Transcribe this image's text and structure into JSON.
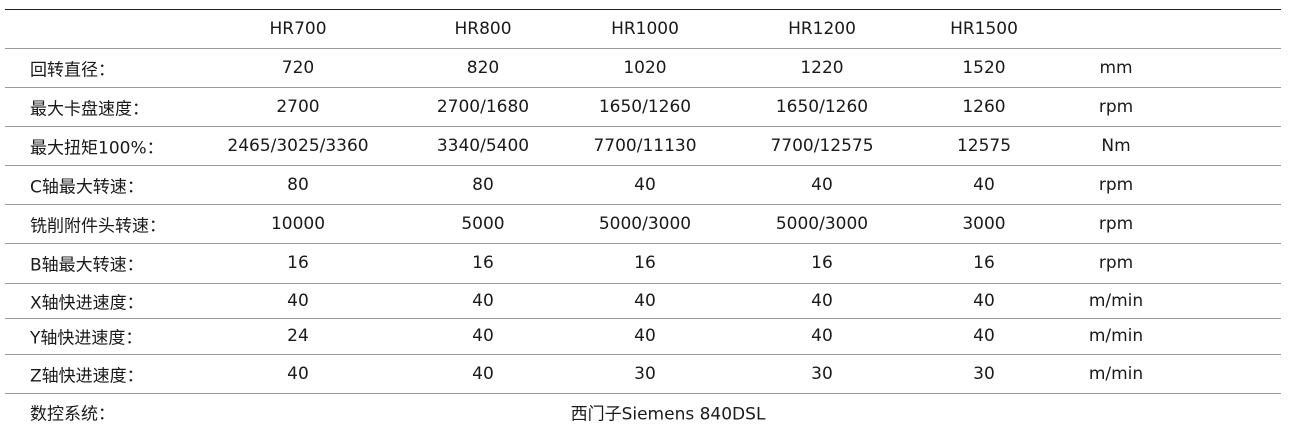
{
  "header": {
    "models": [
      "HR700",
      "HR800",
      "HR1000",
      "HR1200",
      "HR1500"
    ]
  },
  "rows": [
    {
      "label": "回转直径：",
      "values": [
        "720",
        "820",
        "1020",
        "1220",
        "1520"
      ],
      "unit": "mm"
    },
    {
      "label": "最大卡盘速度：",
      "values": [
        "2700",
        "2700/1680",
        "1650/1260",
        "1650/1260",
        "1260"
      ],
      "unit": "rpm"
    },
    {
      "label": "最大扭矩100%：",
      "values": [
        "2465/3025/3360",
        "3340/5400",
        "7700/11130",
        "7700/12575",
        "12575"
      ],
      "unit": "Nm"
    },
    {
      "label": "C轴最大转速：",
      "values": [
        "80",
        "80",
        "40",
        "40",
        "40"
      ],
      "unit": "rpm"
    },
    {
      "label": "铣削附件头转速：",
      "values": [
        "10000",
        "5000",
        "5000/3000",
        "5000/3000",
        "3000"
      ],
      "unit": "rpm"
    },
    {
      "label": "B轴最大转速：",
      "values": [
        "16",
        "16",
        "16",
        "16",
        "16"
      ],
      "unit": "rpm"
    },
    {
      "label": "X轴快进速度：",
      "values": [
        "40",
        "40",
        "40",
        "40",
        "40"
      ],
      "unit": "m/min"
    },
    {
      "label": "Y轴快进速度：",
      "values": [
        "24",
        "40",
        "40",
        "40",
        "40"
      ],
      "unit": "m/min"
    },
    {
      "label": "Z轴快进速度：",
      "values": [
        "40",
        "40",
        "30",
        "30",
        "30"
      ],
      "unit": "m/min"
    }
  ],
  "cnc": {
    "label": "数控系统：",
    "value": "西门子Siemens  840DSL"
  }
}
